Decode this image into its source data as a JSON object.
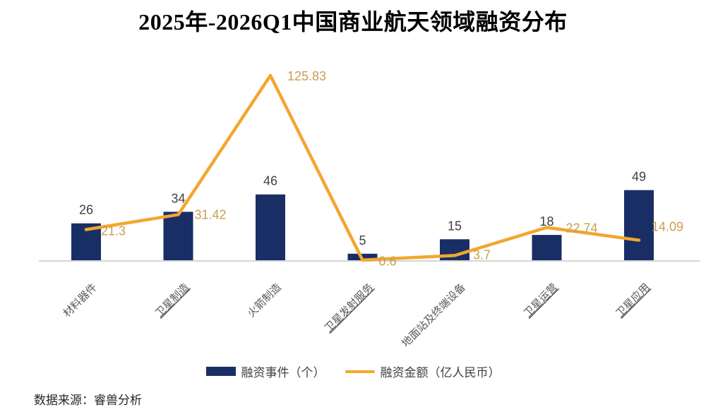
{
  "title": "2025年-2026Q1中国商业航天领域融资分布",
  "source": "数据来源：睿兽分析",
  "colors": {
    "bar": "#1A2E66",
    "line": "#F2A72E",
    "bar_value_label": "#404040",
    "line_value_label": "#C99E4F",
    "category_label": "#595959",
    "axis": "#D6D6D6"
  },
  "chart_data": {
    "type": "combo-bar-line",
    "title": "2025年-2026Q1中国商业航天领域融资分布",
    "categories": [
      "材料器件",
      "卫星制造",
      "火箭制造",
      "卫星发射服务",
      "地面站及终端设备",
      "卫星运营",
      "卫星应用"
    ],
    "categories_underlined": [
      false,
      true,
      false,
      true,
      false,
      true,
      true
    ],
    "series": [
      {
        "name": "融资事件（个）",
        "type": "bar",
        "values": [
          26,
          34,
          46,
          5,
          15,
          18,
          49
        ]
      },
      {
        "name": "融资金额（亿人民币）",
        "type": "line",
        "values": [
          21.3,
          31.42,
          125.83,
          0.6,
          3.7,
          22.74,
          14.09
        ]
      }
    ],
    "xlabel": "",
    "ylabel": "",
    "grid": false,
    "legend_position": "bottom",
    "value_labels_shown": true
  }
}
